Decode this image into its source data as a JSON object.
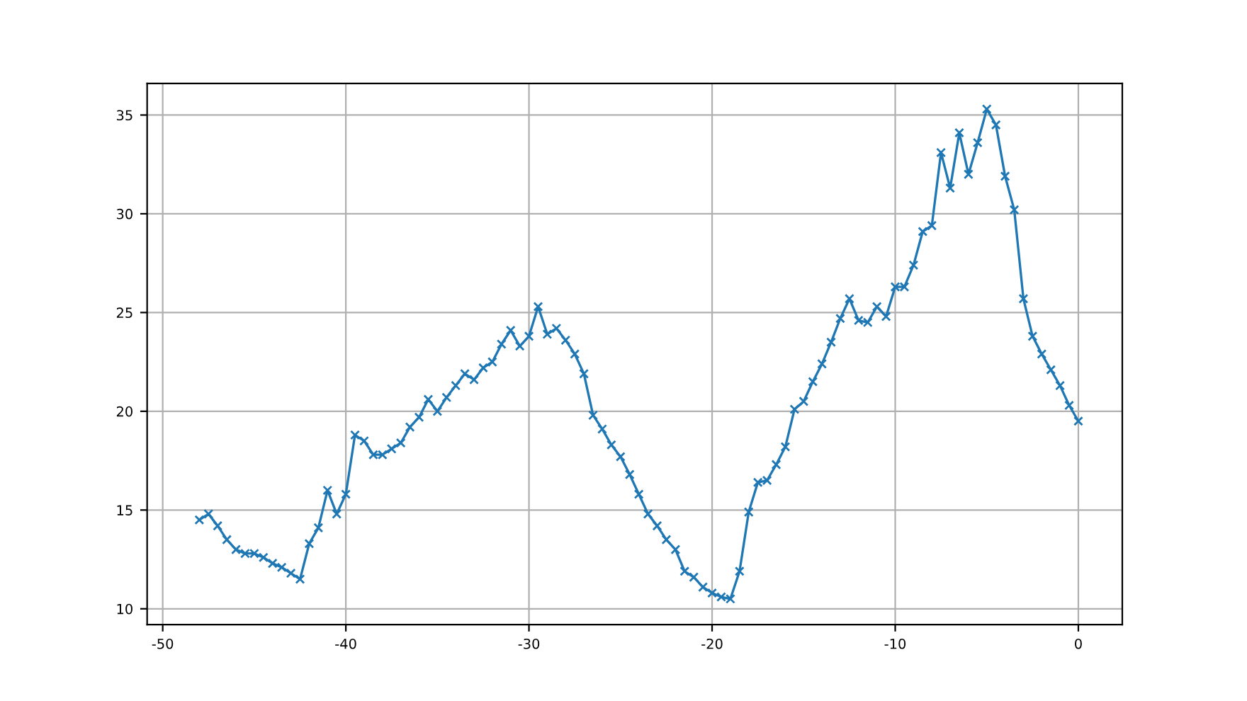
{
  "chart_data": {
    "type": "line",
    "marker": "cross",
    "grid": true,
    "xlim": [
      -50.85,
      2.4
    ],
    "ylim": [
      9.2,
      36.6
    ],
    "xticks": [
      -50,
      -40,
      -30,
      -20,
      -10,
      0
    ],
    "yticks": [
      10,
      15,
      20,
      25,
      30,
      35
    ],
    "x": [
      -48,
      -47.5,
      -47,
      -46.5,
      -46,
      -45.5,
      -45,
      -44.5,
      -44,
      -43.5,
      -43,
      -42.5,
      -42,
      -41.5,
      -41,
      -40.5,
      -40,
      -39.5,
      -39,
      -38.5,
      -38,
      -37.5,
      -37,
      -36.5,
      -36,
      -35.5,
      -35,
      -34.5,
      -34,
      -33.5,
      -33,
      -32.5,
      -32,
      -31.5,
      -31,
      -30.5,
      -30,
      -29.5,
      -29,
      -28.5,
      -28,
      -27.5,
      -27,
      -26.5,
      -26,
      -25.5,
      -25,
      -24.5,
      -24,
      -23.5,
      -23,
      -22.5,
      -22,
      -21.5,
      -21,
      -20.5,
      -20,
      -19.5,
      -19,
      -18.5,
      -18,
      -17.5,
      -17,
      -16.5,
      -16,
      -15.5,
      -15,
      -14.5,
      -14,
      -13.5,
      -13,
      -12.5,
      -12,
      -11.5,
      -11,
      -10.5,
      -10,
      -9.5,
      -9,
      -8.5,
      -8,
      -7.5,
      -7,
      -6.5,
      -6,
      -5.5,
      -5,
      -4.5,
      -4,
      -3.5,
      -3,
      -2.5,
      -2,
      -1.5,
      -1,
      -0.5,
      0
    ],
    "series": [
      {
        "color": "#1f77b4",
        "values": [
          14.5,
          14.8,
          14.2,
          13.5,
          13.0,
          12.8,
          12.8,
          12.6,
          12.3,
          12.1,
          11.8,
          11.5,
          13.3,
          14.1,
          16.0,
          14.8,
          15.8,
          18.8,
          18.5,
          17.8,
          17.8,
          18.1,
          18.4,
          19.2,
          19.7,
          20.6,
          20.0,
          20.7,
          21.3,
          21.9,
          21.6,
          22.2,
          22.5,
          23.4,
          24.1,
          23.3,
          23.8,
          25.3,
          23.9,
          24.2,
          23.6,
          22.9,
          21.9,
          19.8,
          19.1,
          18.3,
          17.7,
          16.8,
          15.8,
          14.8,
          14.2,
          13.5,
          13.0,
          11.9,
          11.6,
          11.1,
          10.8,
          10.6,
          10.5,
          11.9,
          14.9,
          16.4,
          16.5,
          17.3,
          18.2,
          20.1,
          20.5,
          21.5,
          22.4,
          23.5,
          24.7,
          25.7,
          24.6,
          24.5,
          25.3,
          24.8,
          26.3,
          26.3,
          27.4,
          29.1,
          29.4,
          33.1,
          31.3,
          34.1,
          32.0,
          33.6,
          35.3,
          34.5,
          31.9,
          30.2,
          25.7,
          23.8,
          22.9,
          22.1,
          21.3,
          20.3,
          19.5
        ]
      }
    ]
  }
}
